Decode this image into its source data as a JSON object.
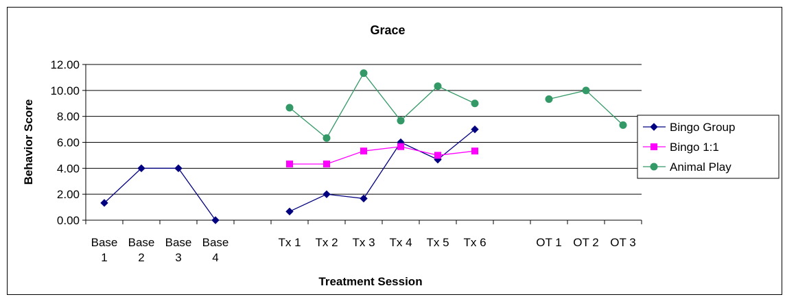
{
  "chart_data": {
    "type": "line",
    "title": "Grace",
    "xlabel": "Treatment Session",
    "ylabel": "Behavior Score",
    "ylim": [
      0,
      12
    ],
    "yticks": [
      "0.00",
      "2.00",
      "4.00",
      "6.00",
      "8.00",
      "10.00",
      "12.00"
    ],
    "categories": [
      [
        "Base",
        "1"
      ],
      [
        "Base",
        "2"
      ],
      [
        "Base",
        "3"
      ],
      [
        "Base",
        "4"
      ],
      [
        ""
      ],
      [
        "Tx 1"
      ],
      [
        "Tx 2"
      ],
      [
        "Tx 3"
      ],
      [
        "Tx 4"
      ],
      [
        "Tx 5"
      ],
      [
        "Tx 6"
      ],
      [
        ""
      ],
      [
        "OT 1"
      ],
      [
        "OT 2"
      ],
      [
        "OT 3"
      ]
    ],
    "grid": true,
    "legend_position": "right",
    "series": [
      {
        "name": "Bingo Group",
        "color": "#000080",
        "marker": "diamond",
        "values": [
          1.33,
          4.0,
          4.0,
          0.0,
          null,
          0.67,
          2.0,
          1.67,
          6.0,
          4.67,
          7.0,
          null,
          null,
          null,
          null
        ]
      },
      {
        "name": "Bingo 1:1",
        "color": "#ff00ff",
        "marker": "square",
        "values": [
          null,
          null,
          null,
          null,
          null,
          4.33,
          4.33,
          5.33,
          5.67,
          5.0,
          5.33,
          null,
          null,
          null,
          null
        ]
      },
      {
        "name": "Animal Play",
        "color": "#339966",
        "marker": "circle",
        "values": [
          null,
          null,
          null,
          null,
          null,
          8.67,
          6.33,
          11.33,
          7.67,
          10.33,
          9.0,
          null,
          9.33,
          10.0,
          7.33
        ]
      }
    ]
  }
}
